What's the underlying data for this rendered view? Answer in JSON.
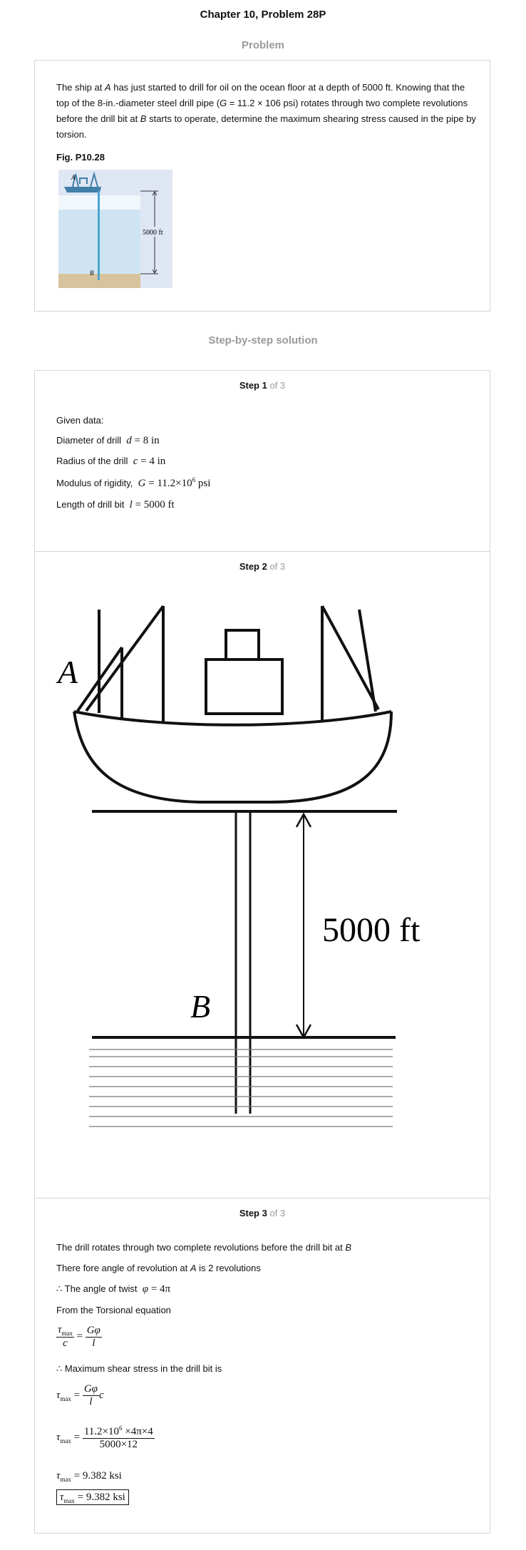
{
  "page": {
    "title": "Chapter 10, Problem 28P",
    "problem_heading": "Problem",
    "solution_heading": "Step-by-step solution"
  },
  "problem": {
    "text_1": "The ship at ",
    "text_A": "A",
    "text_2": " has just started to drill for oil on the ocean floor at a depth of 5000 ft. Knowing that the top of the 8-in.-diameter steel drill pipe (",
    "text_G": "G",
    "text_3": " = 11.2 × 106 psi) rotates through two complete revolutions before the drill bit at ",
    "text_B": "B",
    "text_4": " starts to operate, determine the maximum shearing stress caused in the pipe by torsion.",
    "fig_label": "Fig. P10.28",
    "fig_depth": "5000 ft",
    "fig_A": "A",
    "fig_B": "B"
  },
  "step1": {
    "head": "Step 1",
    "of": "of 3",
    "given": "Given data:",
    "diameter_label": "Diameter of drill",
    "diameter_eq": "d = 8 in",
    "radius_label": "Radius of the drill",
    "radius_eq": "c = 4 in",
    "modulus_label": "Modulus of rigidity,",
    "modulus_eq_a": "G = 11.2×10",
    "modulus_eq_exp": "6",
    "modulus_eq_b": " psi",
    "length_label": "Length of drill bit",
    "length_eq": "l = 5000 ft"
  },
  "step2": {
    "head": "Step 2",
    "of": "of 3",
    "label_A": "A",
    "label_B": "B",
    "depth": "5000 ft"
  },
  "step3": {
    "head": "Step 3",
    "of": "of 3",
    "line1_a": "The drill rotates through two complete revolutions before the drill bit at ",
    "line1_B": "B",
    "line2_a": "There fore angle of revolution at ",
    "line2_A": "A",
    "line2_b": " is 2 revolutions",
    "line3": "∴ The angle of twist",
    "line3_eq": "φ = 4π",
    "line4": "From the Torsional equation",
    "eq1_lhs_num": "τ",
    "eq1_lhs_sub": "max",
    "eq1_lhs_den": "c",
    "eq1_rhs_num": "Gφ",
    "eq1_rhs_den": "l",
    "line5": "∴ Maximum shear stress in the drill bit is",
    "eq2_rhs_num": "Gφ",
    "eq2_rhs_den": "l",
    "eq2_tail": "c",
    "eq3_num_a": "11.2×10",
    "eq3_num_exp": "6",
    "eq3_num_b": " ×4π×4",
    "eq3_den": "5000×12",
    "result": "= 9.382 ksi",
    "boxed_result": "= 9.382 ksi",
    "tau": "τ",
    "max": "max"
  }
}
